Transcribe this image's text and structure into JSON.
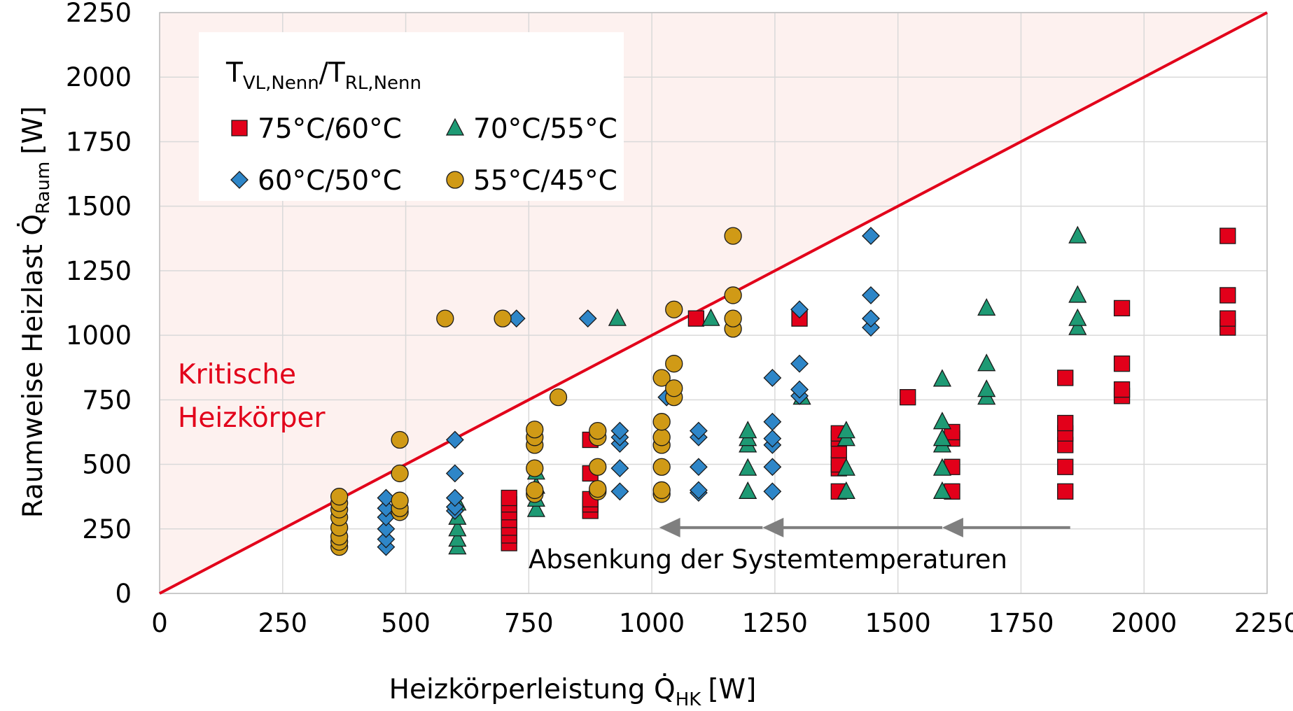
{
  "chart_data": {
    "type": "scatter",
    "xlabel": "Heizkörperleistung Q̇",
    "xlabel_sub": "HK",
    "xlabel_unit": "[W]",
    "ylabel": "Raumweise Heizlast Q̇",
    "ylabel_sub": "Raum",
    "ylabel_unit": "[W]",
    "xlim": [
      0,
      2250
    ],
    "ylim": [
      0,
      2250
    ],
    "xticks": [
      0,
      250,
      500,
      750,
      1000,
      1250,
      1500,
      1750,
      2000,
      2250
    ],
    "yticks": [
      0,
      250,
      500,
      750,
      1000,
      1250,
      1500,
      1750,
      2000,
      2250
    ],
    "grid": true,
    "legend": {
      "title_main": "T",
      "title_sub1": "VL,Nenn",
      "title_slash": "/T",
      "title_sub2": "RL,Nenn",
      "placement": "top-left"
    },
    "critical_label_line1": "Kritische",
    "critical_label_line2": "Heizkörper",
    "critical_color": "#e2001a",
    "diagonal_line": {
      "from": [
        0,
        0
      ],
      "to": [
        2250,
        2250
      ],
      "color": "#e2001a"
    },
    "critical_region_color": "#fdf1ef",
    "arrow_label": "Absenkung der Systemtemperaturen",
    "arrow_color": "#7f7f7f",
    "arrows": [
      {
        "from": [
          1850,
          255
        ],
        "to": [
          1590,
          255
        ]
      },
      {
        "from": [
          1590,
          255
        ],
        "to": [
          1225,
          255
        ]
      },
      {
        "from": [
          1225,
          255
        ],
        "to": [
          1015,
          255
        ]
      }
    ],
    "series": [
      {
        "name": "75°C/60°C",
        "marker": "square",
        "color": "#e2001a",
        "points": [
          [
            710,
            195
          ],
          [
            710,
            225
          ],
          [
            710,
            255
          ],
          [
            710,
            285
          ],
          [
            710,
            315
          ],
          [
            710,
            345
          ],
          [
            710,
            370
          ],
          [
            875,
            320
          ],
          [
            875,
            345
          ],
          [
            875,
            365
          ],
          [
            875,
            465
          ],
          [
            875,
            595
          ],
          [
            1090,
            1065
          ],
          [
            1300,
            1065
          ],
          [
            1520,
            760
          ],
          [
            1380,
            395
          ],
          [
            1380,
            485
          ],
          [
            1380,
            500
          ],
          [
            1380,
            555
          ],
          [
            1380,
            600
          ],
          [
            1380,
            620
          ],
          [
            1610,
            395
          ],
          [
            1610,
            490
          ],
          [
            1610,
            600
          ],
          [
            1610,
            625
          ],
          [
            1840,
            395
          ],
          [
            1840,
            490
          ],
          [
            1840,
            575
          ],
          [
            1840,
            620
          ],
          [
            1840,
            660
          ],
          [
            1840,
            835
          ],
          [
            1955,
            765
          ],
          [
            1955,
            790
          ],
          [
            1955,
            890
          ],
          [
            1955,
            1105
          ],
          [
            2170,
            1030
          ],
          [
            2170,
            1065
          ],
          [
            2170,
            1155
          ],
          [
            2170,
            1385
          ]
        ]
      },
      {
        "name": "70°C/55°C",
        "marker": "triangle",
        "color": "#1e9a74",
        "points": [
          [
            605,
            180
          ],
          [
            605,
            210
          ],
          [
            605,
            250
          ],
          [
            605,
            295
          ],
          [
            605,
            350
          ],
          [
            765,
            325
          ],
          [
            765,
            365
          ],
          [
            765,
            415
          ],
          [
            765,
            470
          ],
          [
            930,
            1065
          ],
          [
            1120,
            1065
          ],
          [
            1195,
            395
          ],
          [
            1195,
            485
          ],
          [
            1195,
            575
          ],
          [
            1195,
            600
          ],
          [
            1195,
            630
          ],
          [
            1305,
            760
          ],
          [
            1395,
            395
          ],
          [
            1395,
            485
          ],
          [
            1395,
            600
          ],
          [
            1395,
            630
          ],
          [
            1590,
            395
          ],
          [
            1590,
            485
          ],
          [
            1590,
            575
          ],
          [
            1590,
            600
          ],
          [
            1590,
            665
          ],
          [
            1590,
            830
          ],
          [
            1680,
            760
          ],
          [
            1680,
            790
          ],
          [
            1680,
            890
          ],
          [
            1680,
            1105
          ],
          [
            1865,
            1030
          ],
          [
            1865,
            1065
          ],
          [
            1865,
            1155
          ],
          [
            1865,
            1385
          ]
        ]
      },
      {
        "name": "60°C/50°C",
        "marker": "diamond",
        "color": "#2e86c8",
        "points": [
          [
            460,
            180
          ],
          [
            460,
            210
          ],
          [
            460,
            250
          ],
          [
            460,
            295
          ],
          [
            460,
            330
          ],
          [
            460,
            370
          ],
          [
            600,
            320
          ],
          [
            600,
            335
          ],
          [
            600,
            370
          ],
          [
            600,
            465
          ],
          [
            600,
            595
          ],
          [
            725,
            1065
          ],
          [
            870,
            1065
          ],
          [
            935,
            395
          ],
          [
            935,
            485
          ],
          [
            935,
            580
          ],
          [
            935,
            605
          ],
          [
            935,
            630
          ],
          [
            1030,
            760
          ],
          [
            1095,
            390
          ],
          [
            1095,
            400
          ],
          [
            1095,
            490
          ],
          [
            1095,
            605
          ],
          [
            1095,
            630
          ],
          [
            1245,
            395
          ],
          [
            1245,
            490
          ],
          [
            1245,
            575
          ],
          [
            1245,
            600
          ],
          [
            1245,
            665
          ],
          [
            1245,
            835
          ],
          [
            1300,
            765
          ],
          [
            1300,
            790
          ],
          [
            1300,
            890
          ],
          [
            1300,
            1100
          ],
          [
            1445,
            1030
          ],
          [
            1445,
            1065
          ],
          [
            1445,
            1155
          ],
          [
            1445,
            1385
          ]
        ]
      },
      {
        "name": "55°C/45°C",
        "marker": "circle",
        "color": "#d09a16",
        "points": [
          [
            365,
            180
          ],
          [
            365,
            200
          ],
          [
            365,
            220
          ],
          [
            365,
            255
          ],
          [
            365,
            295
          ],
          [
            365,
            325
          ],
          [
            365,
            350
          ],
          [
            365,
            375
          ],
          [
            488,
            315
          ],
          [
            488,
            330
          ],
          [
            488,
            360
          ],
          [
            488,
            465
          ],
          [
            488,
            595
          ],
          [
            580,
            1065
          ],
          [
            697,
            1065
          ],
          [
            762,
            385
          ],
          [
            762,
            400
          ],
          [
            762,
            485
          ],
          [
            762,
            575
          ],
          [
            762,
            605
          ],
          [
            762,
            635
          ],
          [
            810,
            760
          ],
          [
            890,
            395
          ],
          [
            890,
            405
          ],
          [
            890,
            490
          ],
          [
            890,
            605
          ],
          [
            890,
            630
          ],
          [
            1020,
            385
          ],
          [
            1020,
            400
          ],
          [
            1020,
            490
          ],
          [
            1020,
            575
          ],
          [
            1020,
            605
          ],
          [
            1020,
            665
          ],
          [
            1020,
            835
          ],
          [
            1045,
            760
          ],
          [
            1045,
            795
          ],
          [
            1045,
            890
          ],
          [
            1045,
            1100
          ],
          [
            1165,
            1025
          ],
          [
            1165,
            1065
          ],
          [
            1165,
            1155
          ],
          [
            1165,
            1385
          ]
        ]
      }
    ]
  }
}
